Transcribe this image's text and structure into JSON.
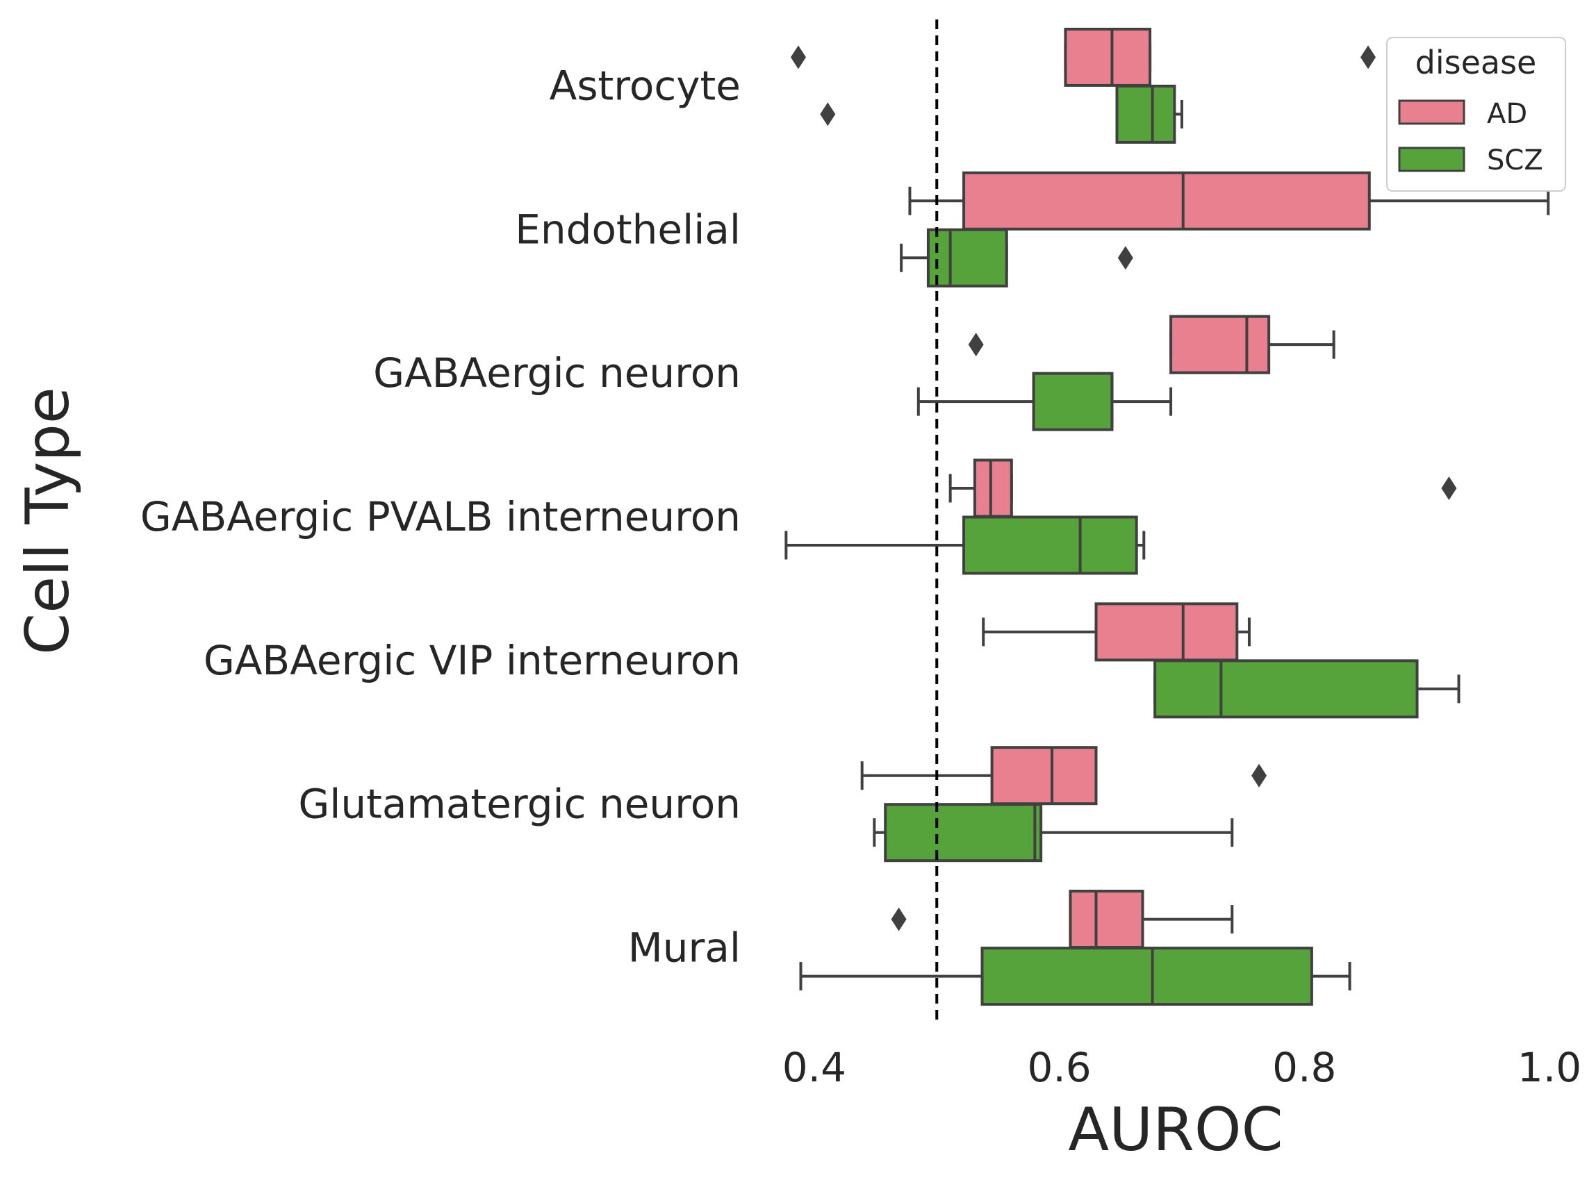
{
  "chart_data": {
    "type": "boxplot",
    "orientation": "horizontal",
    "xlabel": "AUROC",
    "ylabel": "Cell Type",
    "xlim": [
      0.37,
      1.0
    ],
    "xticks": [
      "0.4",
      "0.6",
      "0.8",
      "1.0"
    ],
    "reference_line": {
      "x": 0.5,
      "style": "dashed"
    },
    "grid": false,
    "categories": [
      "Astrocyte",
      "Endothelial",
      "GABAergic neuron",
      "GABAergic PVALB interneuron",
      "GABAergic VIP interneuron",
      "Glutamatergic neuron",
      "Mural"
    ],
    "legend": {
      "title": "disease",
      "position": "top-right"
    },
    "series": [
      {
        "name": "AD",
        "color": "#e8808f",
        "boxes": [
          {
            "whislo": 0.605,
            "q1": 0.605,
            "med": 0.643,
            "q3": 0.674,
            "whishi": 0.674,
            "fliers": [
              0.387,
              0.852
            ]
          },
          {
            "whislo": 0.478,
            "q1": 0.522,
            "med": 0.701,
            "q3": 0.853,
            "whishi": 0.999,
            "fliers": []
          },
          {
            "whislo": 0.691,
            "q1": 0.691,
            "med": 0.753,
            "q3": 0.771,
            "whishi": 0.824,
            "fliers": [
              0.532
            ]
          },
          {
            "whislo": 0.511,
            "q1": 0.531,
            "med": 0.544,
            "q3": 0.561,
            "whishi": 0.561,
            "fliers": [
              0.918
            ]
          },
          {
            "whislo": 0.538,
            "q1": 0.63,
            "med": 0.701,
            "q3": 0.745,
            "whishi": 0.755,
            "fliers": []
          },
          {
            "whislo": 0.439,
            "q1": 0.545,
            "med": 0.594,
            "q3": 0.63,
            "whishi": 0.63,
            "fliers": [
              0.763
            ]
          },
          {
            "whislo": 0.609,
            "q1": 0.609,
            "med": 0.63,
            "q3": 0.668,
            "whishi": 0.741,
            "fliers": [
              0.469
            ]
          }
        ]
      },
      {
        "name": "SCZ",
        "color": "#56a33b",
        "boxes": [
          {
            "whislo": 0.647,
            "q1": 0.647,
            "med": 0.676,
            "q3": 0.694,
            "whishi": 0.7,
            "fliers": [
              0.411
            ]
          },
          {
            "whislo": 0.471,
            "q1": 0.493,
            "med": 0.511,
            "q3": 0.557,
            "whishi": 0.557,
            "fliers": [
              0.654
            ]
          },
          {
            "whislo": 0.485,
            "q1": 0.579,
            "med": 0.643,
            "q3": 0.643,
            "whishi": 0.691,
            "fliers": []
          },
          {
            "whislo": 0.377,
            "q1": 0.522,
            "med": 0.617,
            "q3": 0.663,
            "whishi": 0.669,
            "fliers": []
          },
          {
            "whislo": 0.678,
            "q1": 0.678,
            "med": 0.732,
            "q3": 0.892,
            "whishi": 0.926,
            "fliers": []
          },
          {
            "whislo": 0.449,
            "q1": 0.458,
            "med": 0.58,
            "q3": 0.585,
            "whishi": 0.741,
            "fliers": []
          },
          {
            "whislo": 0.389,
            "q1": 0.537,
            "med": 0.676,
            "q3": 0.806,
            "whishi": 0.837,
            "fliers": []
          }
        ]
      }
    ]
  }
}
